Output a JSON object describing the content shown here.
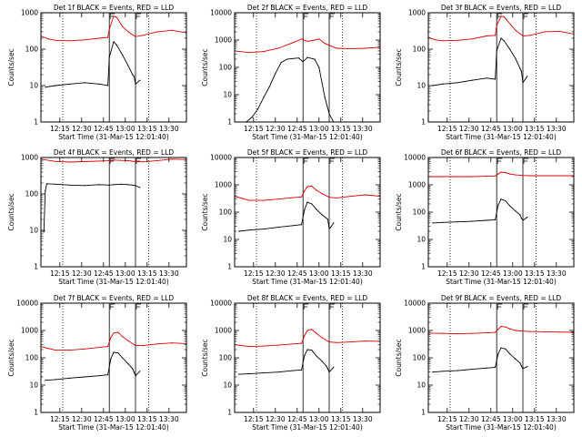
{
  "figure": {
    "time_zero_label": "Start Time (31-Mar-15 12:01:40)",
    "ylabel": "Counts/sec"
  },
  "colors": {
    "events": "#000000",
    "lld": "#e00000",
    "background": "#ffffff"
  },
  "chart_data": [
    {
      "type": "line",
      "title": "Det 1f BLACK = Events, RED = LLD",
      "xlabel": "Start Time (31-Mar-15 12:01:40)",
      "ylabel": "Counts/sec",
      "x_ticks": [
        "12:15",
        "12:30",
        "12:45",
        "13:00",
        "13:15",
        "13:30"
      ],
      "y_scale": "log",
      "ylim": [
        1,
        1000
      ],
      "y_ticks": [
        "1",
        "10",
        "100",
        "1000"
      ],
      "xlim_minutes": [
        0,
        100
      ],
      "vlines_dotted_minutes": [
        15,
        74
      ],
      "vlines_solid_minutes": [
        47,
        65
      ],
      "series": [
        {
          "name": "Events",
          "color": "#000000",
          "x_minutes": [
            3,
            10,
            20,
            30,
            40,
            46,
            47,
            50,
            52,
            56,
            60,
            63,
            64,
            65,
            68
          ],
          "values": [
            9,
            10,
            11,
            12,
            11,
            10,
            60,
            160,
            130,
            70,
            35,
            20,
            18,
            11,
            14
          ]
        },
        {
          "name": "LLD",
          "color": "#e00000",
          "x_minutes": [
            0,
            5,
            10,
            20,
            30,
            40,
            46,
            47,
            50,
            52,
            56,
            60,
            65,
            70,
            80,
            90,
            100
          ],
          "values": [
            230,
            190,
            175,
            170,
            180,
            200,
            210,
            350,
            800,
            760,
            420,
            300,
            220,
            240,
            300,
            330,
            280
          ]
        }
      ]
    },
    {
      "type": "line",
      "title": "Det 2f BLACK = Events, RED = LLD",
      "xlabel": "Start Time (31-Mar-15 12:01:40)",
      "ylabel": "Counts/sec",
      "x_ticks": [
        "12:15",
        "12:30",
        "12:45",
        "13:00",
        "13:15",
        "13:30"
      ],
      "y_scale": "log",
      "ylim": [
        1,
        10000
      ],
      "y_ticks": [
        "1",
        "10",
        "100",
        "1000",
        "10000"
      ],
      "xlim_minutes": [
        0,
        100
      ],
      "vlines_dotted_minutes": [
        15,
        74
      ],
      "vlines_solid_minutes": [
        47,
        65
      ],
      "series": [
        {
          "name": "Events",
          "color": "#000000",
          "x_minutes": [
            3,
            8,
            12,
            16,
            20,
            24,
            28,
            32,
            36,
            40,
            44,
            47,
            50,
            55,
            58,
            62,
            65,
            68
          ],
          "values": [
            1,
            1,
            1.5,
            3,
            8,
            20,
            60,
            150,
            200,
            210,
            220,
            160,
            230,
            200,
            100,
            8,
            2,
            1
          ]
        },
        {
          "name": "LLD",
          "color": "#e00000",
          "x_minutes": [
            0,
            10,
            20,
            30,
            40,
            46,
            50,
            55,
            58,
            62,
            70,
            80,
            90,
            100
          ],
          "values": [
            400,
            350,
            380,
            500,
            800,
            1100,
            900,
            1000,
            1100,
            750,
            500,
            480,
            500,
            550
          ]
        }
      ]
    },
    {
      "type": "line",
      "title": "Det 3f BLACK = Events, RED = LLD",
      "xlabel": "Start Time (31-Mar-15 12:01:40)",
      "ylabel": "Counts/sec",
      "x_ticks": [
        "12:15",
        "12:30",
        "12:45",
        "13:00",
        "13:15",
        "13:30"
      ],
      "y_scale": "log",
      "ylim": [
        1,
        1000
      ],
      "y_ticks": [
        "1",
        "10",
        "100",
        "1000"
      ],
      "xlim_minutes": [
        0,
        100
      ],
      "vlines_dotted_minutes": [
        15,
        74
      ],
      "vlines_solid_minutes": [
        47,
        65
      ],
      "series": [
        {
          "name": "Events",
          "color": "#000000",
          "x_minutes": [
            3,
            10,
            20,
            30,
            40,
            46,
            47,
            50,
            52,
            56,
            60,
            63,
            64,
            65,
            68
          ],
          "values": [
            10,
            11,
            12,
            14,
            16,
            15,
            90,
            200,
            170,
            100,
            55,
            30,
            25,
            12,
            18
          ]
        },
        {
          "name": "LLD",
          "color": "#e00000",
          "x_minutes": [
            0,
            5,
            10,
            20,
            30,
            40,
            46,
            47,
            50,
            52,
            56,
            60,
            65,
            70,
            80,
            90,
            100
          ],
          "values": [
            210,
            180,
            170,
            175,
            190,
            230,
            240,
            450,
            800,
            780,
            500,
            330,
            230,
            240,
            300,
            310,
            260
          ]
        }
      ]
    },
    {
      "type": "line",
      "title": "Det 4f BLACK = Events, RED = LLD",
      "xlabel": "Start Time (31-Mar-15 12:01:40)",
      "ylabel": "Counts/sec",
      "x_ticks": [
        "12:15",
        "12:30",
        "12:45",
        "13:00",
        "13:15",
        "13:30"
      ],
      "y_scale": "log",
      "ylim": [
        1,
        1000
      ],
      "y_ticks": [
        "1",
        "10",
        "100",
        "1000"
      ],
      "xlim_minutes": [
        0,
        100
      ],
      "vlines_dotted_minutes": [
        15,
        74
      ],
      "vlines_solid_minutes": [
        47,
        65
      ],
      "series": [
        {
          "name": "Events",
          "color": "#000000",
          "x_minutes": [
            2,
            3,
            4,
            10,
            20,
            30,
            40,
            47,
            50,
            55,
            60,
            65,
            68
          ],
          "values": [
            9,
            120,
            190,
            185,
            175,
            170,
            180,
            175,
            180,
            185,
            180,
            170,
            150
          ]
        },
        {
          "name": "LLD",
          "color": "#e00000",
          "x_minutes": [
            0,
            10,
            20,
            30,
            40,
            47,
            50,
            55,
            60,
            65,
            70,
            80,
            90,
            100
          ],
          "values": [
            900,
            780,
            750,
            770,
            800,
            820,
            850,
            830,
            820,
            770,
            760,
            820,
            900,
            880
          ]
        }
      ]
    },
    {
      "type": "line",
      "title": "Det 5f BLACK = Events, RED = LLD",
      "xlabel": "Start Time (31-Mar-15 12:01:40)",
      "ylabel": "Counts/sec",
      "x_ticks": [
        "12:15",
        "12:30",
        "12:45",
        "13:00",
        "13:15",
        "13:30"
      ],
      "y_scale": "log",
      "ylim": [
        1,
        10000
      ],
      "y_ticks": [
        "1",
        "10",
        "100",
        "1000",
        "10000"
      ],
      "xlim_minutes": [
        0,
        100
      ],
      "vlines_dotted_minutes": [
        15,
        74
      ],
      "vlines_solid_minutes": [
        47,
        65
      ],
      "series": [
        {
          "name": "Events",
          "color": "#000000",
          "x_minutes": [
            3,
            10,
            20,
            30,
            40,
            46,
            48,
            50,
            53,
            56,
            60,
            64,
            65,
            66,
            68
          ],
          "values": [
            20,
            22,
            24,
            28,
            32,
            35,
            120,
            230,
            200,
            130,
            80,
            55,
            25,
            28,
            40
          ]
        },
        {
          "name": "LLD",
          "color": "#e00000",
          "x_minutes": [
            0,
            5,
            10,
            20,
            30,
            40,
            46,
            48,
            50,
            53,
            56,
            60,
            65,
            70,
            80,
            90,
            100
          ],
          "values": [
            380,
            320,
            270,
            270,
            300,
            340,
            360,
            600,
            850,
            900,
            650,
            480,
            350,
            330,
            380,
            430,
            380
          ]
        }
      ]
    },
    {
      "type": "line",
      "title": "Det 6f BLACK = Events, RED = LLD",
      "xlabel": "Start Time (31-Mar-15 12:01:40)",
      "ylabel": "Counts/sec",
      "x_ticks": [
        "12:15",
        "12:30",
        "12:45",
        "13:00",
        "13:15",
        "13:30"
      ],
      "y_scale": "log",
      "ylim": [
        1,
        10000
      ],
      "y_ticks": [
        "1",
        "10",
        "100",
        "1000",
        "10000"
      ],
      "xlim_minutes": [
        0,
        100
      ],
      "vlines_dotted_minutes": [
        15,
        74
      ],
      "vlines_solid_minutes": [
        47,
        65
      ],
      "series": [
        {
          "name": "Events",
          "color": "#000000",
          "x_minutes": [
            3,
            10,
            20,
            30,
            40,
            46,
            48,
            50,
            53,
            56,
            60,
            63,
            64,
            65,
            68
          ],
          "values": [
            40,
            42,
            44,
            46,
            50,
            52,
            180,
            300,
            260,
            170,
            110,
            80,
            60,
            50,
            65
          ]
        },
        {
          "name": "LLD",
          "color": "#e00000",
          "x_minutes": [
            0,
            10,
            20,
            30,
            40,
            46,
            48,
            50,
            53,
            56,
            60,
            65,
            70,
            80,
            90,
            100
          ],
          "values": [
            2000,
            2000,
            2000,
            2000,
            2050,
            2100,
            2500,
            2900,
            2800,
            2500,
            2300,
            2200,
            2150,
            2150,
            2150,
            2150
          ]
        }
      ]
    },
    {
      "type": "line",
      "title": "Det 7f BLACK = Events, RED = LLD",
      "xlabel": "Start Time (31-Mar-15 12:01:40)",
      "ylabel": "Counts/sec",
      "x_ticks": [
        "12:15",
        "12:30",
        "12:45",
        "13:00",
        "13:15",
        "13:30"
      ],
      "y_scale": "log",
      "ylim": [
        1,
        10000
      ],
      "y_ticks": [
        "1",
        "10",
        "100",
        "1000",
        "10000"
      ],
      "xlim_minutes": [
        0,
        100
      ],
      "vlines_dotted_minutes": [
        15,
        74
      ],
      "vlines_solid_minutes": [
        47,
        65
      ],
      "series": [
        {
          "name": "Events",
          "color": "#000000",
          "x_minutes": [
            3,
            10,
            20,
            30,
            40,
            46,
            48,
            50,
            53,
            56,
            60,
            63,
            64,
            65,
            68
          ],
          "values": [
            15,
            16,
            18,
            20,
            22,
            24,
            90,
            160,
            150,
            100,
            60,
            40,
            30,
            22,
            32
          ]
        },
        {
          "name": "LLD",
          "color": "#e00000",
          "x_minutes": [
            0,
            5,
            10,
            20,
            30,
            40,
            46,
            48,
            50,
            53,
            56,
            60,
            65,
            70,
            80,
            90,
            100
          ],
          "values": [
            260,
            220,
            190,
            190,
            210,
            240,
            260,
            550,
            800,
            850,
            600,
            420,
            280,
            280,
            320,
            350,
            330
          ]
        }
      ]
    },
    {
      "type": "line",
      "title": "Det 8f BLACK = Events, RED = LLD",
      "xlabel": "Start Time (31-Mar-15 12:01:40)",
      "ylabel": "Counts/sec",
      "x_ticks": [
        "12:15",
        "12:30",
        "12:45",
        "13:00",
        "13:15",
        "13:30"
      ],
      "y_scale": "log",
      "ylim": [
        1,
        10000
      ],
      "y_ticks": [
        "1",
        "10",
        "100",
        "1000",
        "10000"
      ],
      "xlim_minutes": [
        0,
        100
      ],
      "vlines_dotted_minutes": [
        15,
        74
      ],
      "vlines_solid_minutes": [
        47,
        65
      ],
      "series": [
        {
          "name": "Events",
          "color": "#000000",
          "x_minutes": [
            3,
            10,
            20,
            30,
            40,
            46,
            48,
            50,
            53,
            56,
            60,
            63,
            64,
            65,
            68
          ],
          "values": [
            25,
            26,
            28,
            30,
            34,
            36,
            120,
            200,
            190,
            120,
            75,
            50,
            40,
            30,
            45
          ]
        },
        {
          "name": "LLD",
          "color": "#e00000",
          "x_minutes": [
            0,
            5,
            10,
            20,
            30,
            40,
            46,
            48,
            50,
            53,
            56,
            60,
            65,
            70,
            80,
            90,
            100
          ],
          "values": [
            300,
            280,
            260,
            270,
            290,
            320,
            340,
            650,
            1000,
            1100,
            800,
            550,
            380,
            360,
            380,
            410,
            400
          ]
        }
      ]
    },
    {
      "type": "line",
      "title": "Det 9f BLACK = Events, RED = LLD",
      "xlabel": "Start Time (31-Mar-15 12:01:40)",
      "ylabel": "Counts/sec",
      "x_ticks": [
        "12:15",
        "12:30",
        "12:45",
        "13:00",
        "13:15",
        "13:30"
      ],
      "y_scale": "log",
      "ylim": [
        1,
        10000
      ],
      "y_ticks": [
        "1",
        "10",
        "100",
        "1000",
        "10000"
      ],
      "xlim_minutes": [
        0,
        100
      ],
      "vlines_dotted_minutes": [
        15,
        74
      ],
      "vlines_solid_minutes": [
        47,
        65
      ],
      "series": [
        {
          "name": "Events",
          "color": "#000000",
          "x_minutes": [
            3,
            10,
            20,
            30,
            40,
            46,
            48,
            50,
            53,
            56,
            60,
            63,
            64,
            65,
            68
          ],
          "values": [
            30,
            32,
            34,
            38,
            42,
            45,
            140,
            230,
            210,
            140,
            90,
            65,
            50,
            40,
            48
          ]
        },
        {
          "name": "LLD",
          "color": "#e00000",
          "x_minutes": [
            0,
            10,
            20,
            30,
            40,
            46,
            48,
            50,
            53,
            56,
            60,
            65,
            70,
            80,
            90,
            100
          ],
          "values": [
            800,
            780,
            760,
            780,
            820,
            850,
            1100,
            1400,
            1350,
            1150,
            1000,
            950,
            920,
            900,
            880,
            860
          ]
        }
      ]
    }
  ]
}
